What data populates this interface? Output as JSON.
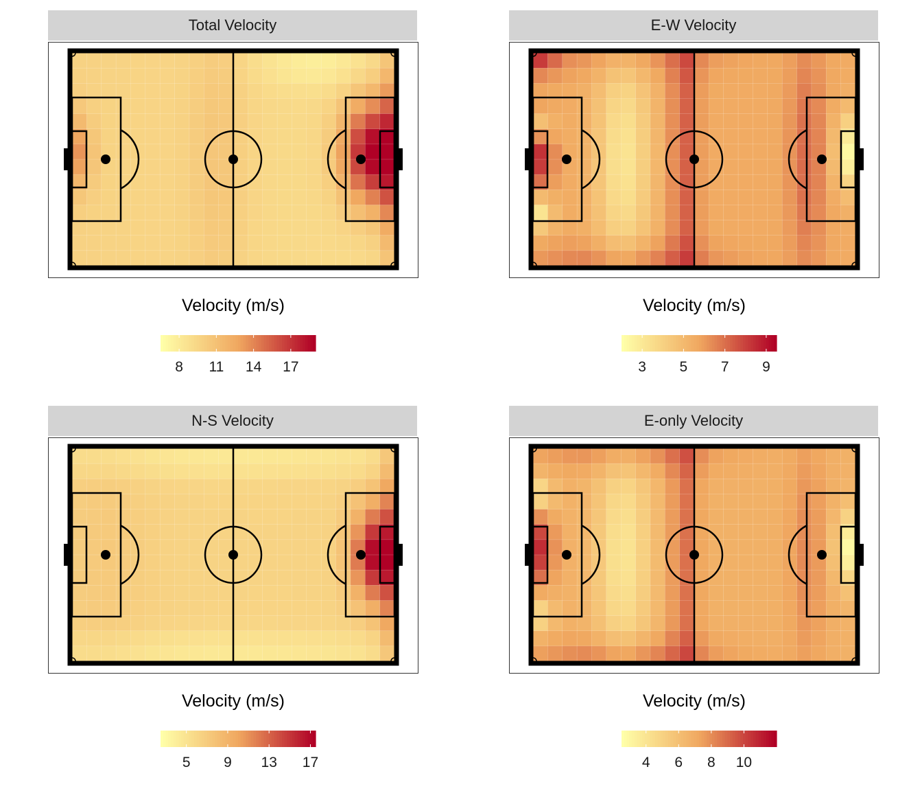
{
  "chart_data": [
    {
      "type": "heatmap",
      "title": "Total Velocity",
      "legend_title": "Velocity (m/s)",
      "color_scale": {
        "low": "#ffffa8",
        "mid": "#f0a860",
        "high": "#b00026",
        "min": 6.5,
        "max": 19.0
      },
      "legend_ticks": [
        8,
        11,
        14,
        17
      ],
      "legend_tick_labels": [
        "8",
        "11",
        "14",
        "17"
      ],
      "pattern": "total",
      "grid": {
        "cols": 22,
        "rows": 14
      }
    },
    {
      "type": "heatmap",
      "title": "E-W Velocity",
      "legend_title": "Velocity (m/s)",
      "color_scale": {
        "low": "#ffffa8",
        "mid": "#f0a860",
        "high": "#b00026",
        "min": 2.0,
        "max": 9.5
      },
      "legend_ticks": [
        3,
        5,
        7,
        9
      ],
      "legend_tick_labels": [
        "3",
        "5",
        "7",
        "9"
      ],
      "pattern": "ew",
      "grid": {
        "cols": 22,
        "rows": 14
      }
    },
    {
      "type": "heatmap",
      "title": "N-S Velocity",
      "legend_title": "Velocity (m/s)",
      "color_scale": {
        "low": "#ffffa8",
        "mid": "#f0a860",
        "high": "#b00026",
        "min": 2.5,
        "max": 17.5
      },
      "legend_ticks": [
        5,
        9,
        13,
        17
      ],
      "legend_tick_labels": [
        "5",
        "9",
        "13",
        "17"
      ],
      "pattern": "ns",
      "grid": {
        "cols": 22,
        "rows": 14
      }
    },
    {
      "type": "heatmap",
      "title": "E-only Velocity",
      "legend_title": "Velocity (m/s)",
      "color_scale": {
        "low": "#ffffa8",
        "mid": "#f0a860",
        "high": "#b00026",
        "min": 2.5,
        "max": 12.0
      },
      "legend_ticks": [
        4,
        6,
        8,
        10
      ],
      "legend_tick_labels": [
        "4",
        "6",
        "8",
        "10"
      ],
      "pattern": "eonly",
      "grid": {
        "cols": 22,
        "rows": 14
      }
    }
  ],
  "colors": {
    "strip_bg": "#d3d3d3",
    "pitch_lines": "#000000",
    "frame_border": "#333333"
  }
}
